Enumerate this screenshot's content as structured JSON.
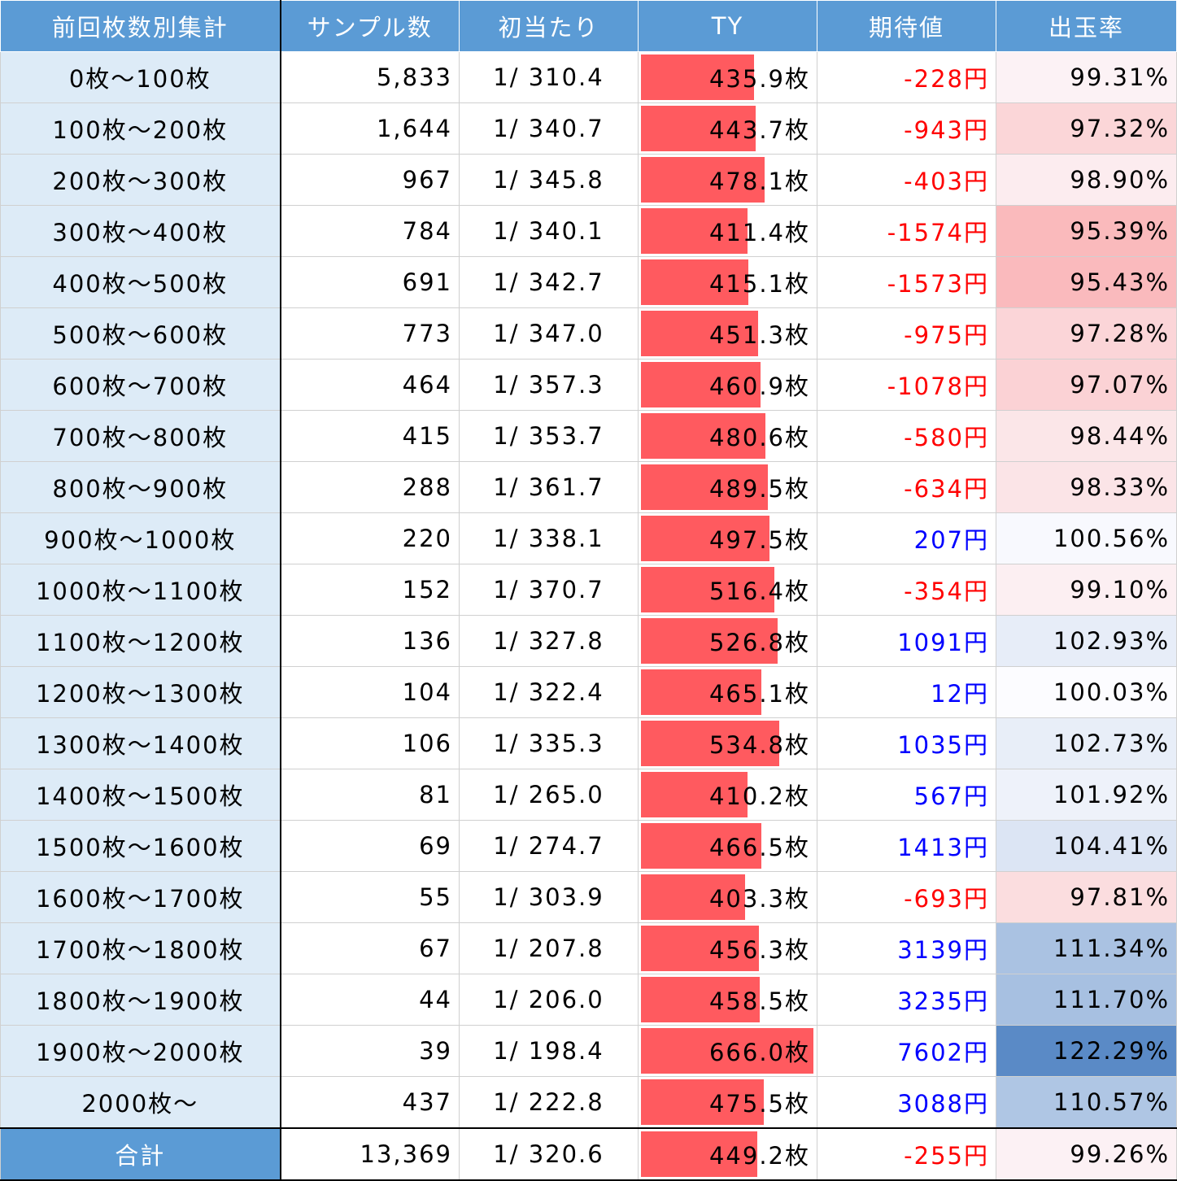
{
  "colors": {
    "header_bg": "#5b9bd5",
    "label_bg": "#ddebf7",
    "bar": "#ff5a5f",
    "negative": "#ff0000",
    "positive": "#0000ff",
    "rate_low": "#f8696b",
    "rate_mid": "#fcfcff",
    "rate_high": "#5a8ac6"
  },
  "chart_data": {
    "type": "table",
    "columns": [
      "前回枚数別集計",
      "サンプル数",
      "初当たり",
      "TY",
      "期待値",
      "出玉率"
    ],
    "ty_bar_max": 666.0,
    "rate_scale": {
      "min": 95.39,
      "mid": 100.0,
      "max": 122.29
    },
    "rows": [
      {
        "label": "0枚～100枚",
        "samples": "5,833",
        "hit": "1/ 310.4",
        "ty": 435.9,
        "ty_text": "435.9枚",
        "ev": "-228円",
        "ev_value": -228,
        "rate": "99.31%",
        "rate_value": 99.31
      },
      {
        "label": "100枚～200枚",
        "samples": "1,644",
        "hit": "1/ 340.7",
        "ty": 443.7,
        "ty_text": "443.7枚",
        "ev": "-943円",
        "ev_value": -943,
        "rate": "97.32%",
        "rate_value": 97.32
      },
      {
        "label": "200枚～300枚",
        "samples": "967",
        "hit": "1/ 345.8",
        "ty": 478.1,
        "ty_text": "478.1枚",
        "ev": "-403円",
        "ev_value": -403,
        "rate": "98.90%",
        "rate_value": 98.9
      },
      {
        "label": "300枚～400枚",
        "samples": "784",
        "hit": "1/ 340.1",
        "ty": 411.4,
        "ty_text": "411.4枚",
        "ev": "-1574円",
        "ev_value": -1574,
        "rate": "95.39%",
        "rate_value": 95.39
      },
      {
        "label": "400枚～500枚",
        "samples": "691",
        "hit": "1/ 342.7",
        "ty": 415.1,
        "ty_text": "415.1枚",
        "ev": "-1573円",
        "ev_value": -1573,
        "rate": "95.43%",
        "rate_value": 95.43
      },
      {
        "label": "500枚～600枚",
        "samples": "773",
        "hit": "1/ 347.0",
        "ty": 451.3,
        "ty_text": "451.3枚",
        "ev": "-975円",
        "ev_value": -975,
        "rate": "97.28%",
        "rate_value": 97.28
      },
      {
        "label": "600枚～700枚",
        "samples": "464",
        "hit": "1/ 357.3",
        "ty": 460.9,
        "ty_text": "460.9枚",
        "ev": "-1078円",
        "ev_value": -1078,
        "rate": "97.07%",
        "rate_value": 97.07
      },
      {
        "label": "700枚～800枚",
        "samples": "415",
        "hit": "1/ 353.7",
        "ty": 480.6,
        "ty_text": "480.6枚",
        "ev": "-580円",
        "ev_value": -580,
        "rate": "98.44%",
        "rate_value": 98.44
      },
      {
        "label": "800枚～900枚",
        "samples": "288",
        "hit": "1/ 361.7",
        "ty": 489.5,
        "ty_text": "489.5枚",
        "ev": "-634円",
        "ev_value": -634,
        "rate": "98.33%",
        "rate_value": 98.33
      },
      {
        "label": "900枚～1000枚",
        "samples": "220",
        "hit": "1/ 338.1",
        "ty": 497.5,
        "ty_text": "497.5枚",
        "ev": "207円",
        "ev_value": 207,
        "rate": "100.56%",
        "rate_value": 100.56
      },
      {
        "label": "1000枚～1100枚",
        "samples": "152",
        "hit": "1/ 370.7",
        "ty": 516.4,
        "ty_text": "516.4枚",
        "ev": "-354円",
        "ev_value": -354,
        "rate": "99.10%",
        "rate_value": 99.1
      },
      {
        "label": "1100枚～1200枚",
        "samples": "136",
        "hit": "1/ 327.8",
        "ty": 526.8,
        "ty_text": "526.8枚",
        "ev": "1091円",
        "ev_value": 1091,
        "rate": "102.93%",
        "rate_value": 102.93
      },
      {
        "label": "1200枚～1300枚",
        "samples": "104",
        "hit": "1/ 322.4",
        "ty": 465.1,
        "ty_text": "465.1枚",
        "ev": "12円",
        "ev_value": 12,
        "rate": "100.03%",
        "rate_value": 100.03
      },
      {
        "label": "1300枚～1400枚",
        "samples": "106",
        "hit": "1/ 335.3",
        "ty": 534.8,
        "ty_text": "534.8枚",
        "ev": "1035円",
        "ev_value": 1035,
        "rate": "102.73%",
        "rate_value": 102.73
      },
      {
        "label": "1400枚～1500枚",
        "samples": "81",
        "hit": "1/ 265.0",
        "ty": 410.2,
        "ty_text": "410.2枚",
        "ev": "567円",
        "ev_value": 567,
        "rate": "101.92%",
        "rate_value": 101.92
      },
      {
        "label": "1500枚～1600枚",
        "samples": "69",
        "hit": "1/ 274.7",
        "ty": 466.5,
        "ty_text": "466.5枚",
        "ev": "1413円",
        "ev_value": 1413,
        "rate": "104.41%",
        "rate_value": 104.41
      },
      {
        "label": "1600枚～1700枚",
        "samples": "55",
        "hit": "1/ 303.9",
        "ty": 403.3,
        "ty_text": "403.3枚",
        "ev": "-693円",
        "ev_value": -693,
        "rate": "97.81%",
        "rate_value": 97.81
      },
      {
        "label": "1700枚～1800枚",
        "samples": "67",
        "hit": "1/ 207.8",
        "ty": 456.3,
        "ty_text": "456.3枚",
        "ev": "3139円",
        "ev_value": 3139,
        "rate": "111.34%",
        "rate_value": 111.34
      },
      {
        "label": "1800枚～1900枚",
        "samples": "44",
        "hit": "1/ 206.0",
        "ty": 458.5,
        "ty_text": "458.5枚",
        "ev": "3235円",
        "ev_value": 3235,
        "rate": "111.70%",
        "rate_value": 111.7
      },
      {
        "label": "1900枚～2000枚",
        "samples": "39",
        "hit": "1/ 198.4",
        "ty": 666.0,
        "ty_text": "666.0枚",
        "ev": "7602円",
        "ev_value": 7602,
        "rate": "122.29%",
        "rate_value": 122.29
      },
      {
        "label": "2000枚～",
        "samples": "437",
        "hit": "1/ 222.8",
        "ty": 475.5,
        "ty_text": "475.5枚",
        "ev": "3088円",
        "ev_value": 3088,
        "rate": "110.57%",
        "rate_value": 110.57
      }
    ],
    "total": {
      "label": "合計",
      "samples": "13,369",
      "hit": "1/ 320.6",
      "ty": 449.2,
      "ty_text": "449.2枚",
      "ev": "-255円",
      "ev_value": -255,
      "rate": "99.26%",
      "rate_value": 99.26
    }
  }
}
